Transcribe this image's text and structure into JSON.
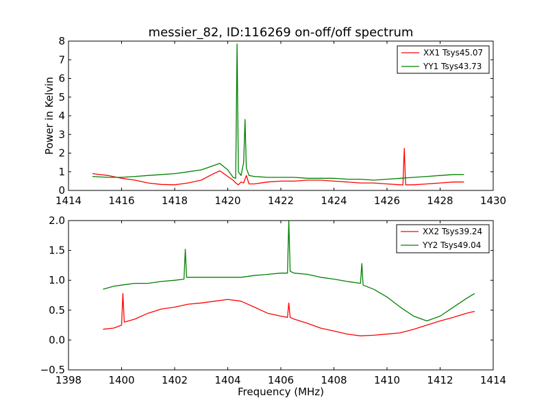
{
  "chart_data": [
    {
      "type": "line",
      "title": "messier_82, ID:116269 on-off/off spectrum",
      "xlabel": "",
      "ylabel": "Power in Kelvin",
      "xlim": [
        1414,
        1430
      ],
      "ylim": [
        0,
        8
      ],
      "xticks": [
        "1414",
        "1416",
        "1418",
        "1420",
        "1422",
        "1424",
        "1426",
        "1428",
        "1430"
      ],
      "yticks": [
        "0",
        "1",
        "2",
        "3",
        "4",
        "5",
        "6",
        "7",
        "8"
      ],
      "legend": "top-right",
      "series": [
        {
          "name": "XX1 Tsys45.07",
          "color": "#ff0000",
          "points": [
            [
              1414.9,
              0.9
            ],
            [
              1415.5,
              0.8
            ],
            [
              1416.0,
              0.65
            ],
            [
              1416.5,
              0.55
            ],
            [
              1417.0,
              0.4
            ],
            [
              1417.5,
              0.32
            ],
            [
              1418.0,
              0.3
            ],
            [
              1418.5,
              0.4
            ],
            [
              1419.0,
              0.55
            ],
            [
              1419.4,
              0.85
            ],
            [
              1419.7,
              1.05
            ],
            [
              1420.0,
              0.75
            ],
            [
              1420.2,
              0.55
            ],
            [
              1420.3,
              0.4
            ],
            [
              1420.4,
              0.3
            ],
            [
              1420.5,
              0.45
            ],
            [
              1420.6,
              0.4
            ],
            [
              1420.7,
              0.8
            ],
            [
              1420.8,
              0.35
            ],
            [
              1421.0,
              0.35
            ],
            [
              1421.5,
              0.45
            ],
            [
              1422.0,
              0.5
            ],
            [
              1422.5,
              0.5
            ],
            [
              1423.0,
              0.55
            ],
            [
              1423.5,
              0.55
            ],
            [
              1424.0,
              0.5
            ],
            [
              1424.5,
              0.45
            ],
            [
              1425.0,
              0.4
            ],
            [
              1425.5,
              0.4
            ],
            [
              1426.0,
              0.35
            ],
            [
              1426.5,
              0.3
            ],
            [
              1426.6,
              0.3
            ],
            [
              1426.65,
              2.25
            ],
            [
              1426.7,
              0.3
            ],
            [
              1427.0,
              0.3
            ],
            [
              1427.5,
              0.35
            ],
            [
              1428.0,
              0.4
            ],
            [
              1428.5,
              0.45
            ],
            [
              1428.9,
              0.45
            ]
          ]
        },
        {
          "name": "YY1 Tsys43.73",
          "color": "#008000",
          "points": [
            [
              1414.9,
              0.75
            ],
            [
              1415.5,
              0.7
            ],
            [
              1416.0,
              0.7
            ],
            [
              1416.5,
              0.75
            ],
            [
              1417.0,
              0.8
            ],
            [
              1417.5,
              0.85
            ],
            [
              1418.0,
              0.9
            ],
            [
              1418.5,
              1.0
            ],
            [
              1419.0,
              1.1
            ],
            [
              1419.4,
              1.3
            ],
            [
              1419.7,
              1.45
            ],
            [
              1420.0,
              1.1
            ],
            [
              1420.2,
              0.7
            ],
            [
              1420.3,
              0.65
            ],
            [
              1420.35,
              7.85
            ],
            [
              1420.4,
              1.0
            ],
            [
              1420.5,
              0.8
            ],
            [
              1420.6,
              1.5
            ],
            [
              1420.65,
              3.8
            ],
            [
              1420.7,
              1.2
            ],
            [
              1420.8,
              0.8
            ],
            [
              1421.0,
              0.75
            ],
            [
              1421.5,
              0.7
            ],
            [
              1422.0,
              0.7
            ],
            [
              1422.5,
              0.7
            ],
            [
              1423.0,
              0.65
            ],
            [
              1423.5,
              0.65
            ],
            [
              1424.0,
              0.65
            ],
            [
              1424.5,
              0.6
            ],
            [
              1425.0,
              0.6
            ],
            [
              1425.5,
              0.55
            ],
            [
              1426.0,
              0.6
            ],
            [
              1426.5,
              0.65
            ],
            [
              1427.0,
              0.7
            ],
            [
              1427.5,
              0.75
            ],
            [
              1428.0,
              0.8
            ],
            [
              1428.5,
              0.85
            ],
            [
              1428.9,
              0.85
            ]
          ]
        }
      ]
    },
    {
      "type": "line",
      "title": "",
      "xlabel": "Frequency (MHz)",
      "ylabel": "",
      "xlim": [
        1398,
        1414
      ],
      "ylim": [
        -0.5,
        2.0
      ],
      "xticks": [
        "1398",
        "1400",
        "1402",
        "1404",
        "1406",
        "1408",
        "1410",
        "1412",
        "1414"
      ],
      "yticks": [
        "−0.5",
        "0.0",
        "0.5",
        "1.0",
        "1.5",
        "2.0"
      ],
      "legend": "top-right",
      "series": [
        {
          "name": "XX2 Tsys39.24",
          "color": "#ff0000",
          "points": [
            [
              1399.3,
              0.18
            ],
            [
              1399.7,
              0.2
            ],
            [
              1400.0,
              0.25
            ],
            [
              1400.05,
              0.78
            ],
            [
              1400.1,
              0.3
            ],
            [
              1400.5,
              0.35
            ],
            [
              1401.0,
              0.45
            ],
            [
              1401.5,
              0.52
            ],
            [
              1402.0,
              0.55
            ],
            [
              1402.5,
              0.6
            ],
            [
              1403.0,
              0.62
            ],
            [
              1403.5,
              0.65
            ],
            [
              1404.0,
              0.68
            ],
            [
              1404.5,
              0.65
            ],
            [
              1405.0,
              0.55
            ],
            [
              1405.5,
              0.45
            ],
            [
              1406.0,
              0.4
            ],
            [
              1406.25,
              0.38
            ],
            [
              1406.3,
              0.62
            ],
            [
              1406.35,
              0.38
            ],
            [
              1406.5,
              0.35
            ],
            [
              1407.0,
              0.28
            ],
            [
              1407.5,
              0.2
            ],
            [
              1408.0,
              0.15
            ],
            [
              1408.5,
              0.1
            ],
            [
              1409.0,
              0.07
            ],
            [
              1409.5,
              0.08
            ],
            [
              1410.0,
              0.1
            ],
            [
              1410.5,
              0.12
            ],
            [
              1411.0,
              0.18
            ],
            [
              1411.5,
              0.25
            ],
            [
              1412.0,
              0.32
            ],
            [
              1412.5,
              0.38
            ],
            [
              1413.0,
              0.45
            ],
            [
              1413.3,
              0.48
            ]
          ]
        },
        {
          "name": "YY2 Tsys49.04",
          "color": "#008000",
          "points": [
            [
              1399.3,
              0.85
            ],
            [
              1399.7,
              0.9
            ],
            [
              1400.0,
              0.92
            ],
            [
              1400.5,
              0.95
            ],
            [
              1401.0,
              0.95
            ],
            [
              1401.5,
              0.98
            ],
            [
              1402.0,
              1.0
            ],
            [
              1402.35,
              1.02
            ],
            [
              1402.4,
              1.52
            ],
            [
              1402.45,
              1.05
            ],
            [
              1403.0,
              1.05
            ],
            [
              1403.5,
              1.05
            ],
            [
              1404.0,
              1.05
            ],
            [
              1404.5,
              1.05
            ],
            [
              1405.0,
              1.08
            ],
            [
              1405.5,
              1.1
            ],
            [
              1406.0,
              1.12
            ],
            [
              1406.25,
              1.12
            ],
            [
              1406.3,
              2.0
            ],
            [
              1406.35,
              1.15
            ],
            [
              1406.5,
              1.12
            ],
            [
              1407.0,
              1.1
            ],
            [
              1407.5,
              1.05
            ],
            [
              1408.0,
              1.02
            ],
            [
              1408.5,
              0.98
            ],
            [
              1409.0,
              0.95
            ],
            [
              1409.05,
              1.28
            ],
            [
              1409.1,
              0.92
            ],
            [
              1409.5,
              0.85
            ],
            [
              1410.0,
              0.72
            ],
            [
              1410.5,
              0.55
            ],
            [
              1411.0,
              0.4
            ],
            [
              1411.5,
              0.32
            ],
            [
              1412.0,
              0.4
            ],
            [
              1412.5,
              0.55
            ],
            [
              1413.0,
              0.7
            ],
            [
              1413.3,
              0.78
            ]
          ]
        }
      ]
    }
  ]
}
